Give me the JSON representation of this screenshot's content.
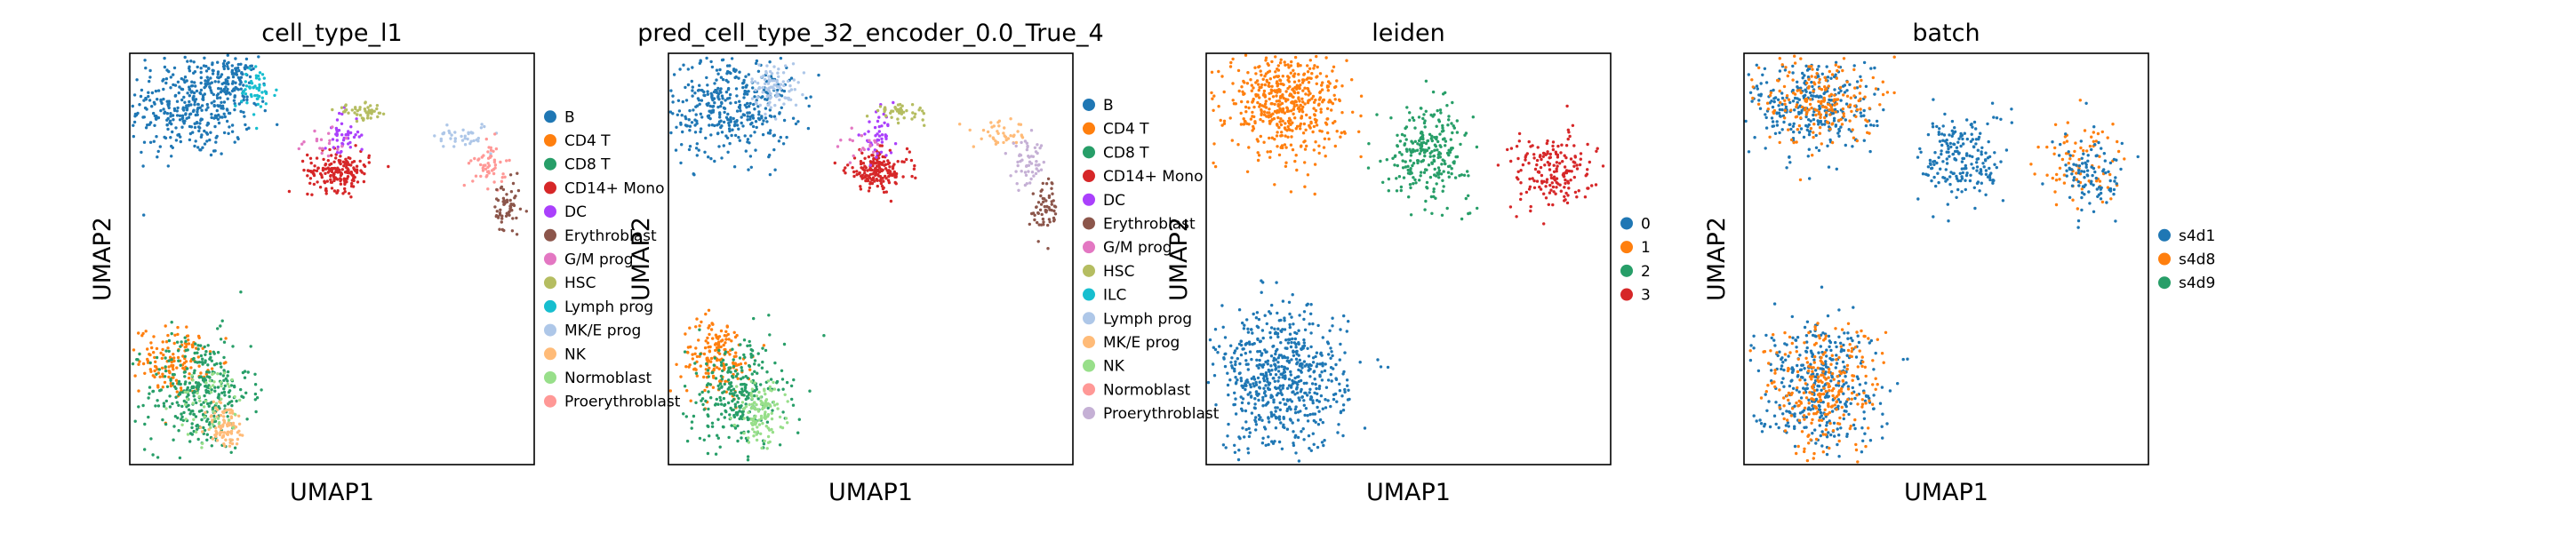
{
  "figure": {
    "panels": [
      {
        "title": "cell_type_l1",
        "xlabel": "UMAP1",
        "ylabel": "UMAP2",
        "legend": [
          {
            "label": "B",
            "color": "#1f77b4"
          },
          {
            "label": "CD4 T",
            "color": "#ff7f0e"
          },
          {
            "label": "CD8 T",
            "color": "#279e68"
          },
          {
            "label": "CD14+ Mono",
            "color": "#d62728"
          },
          {
            "label": "DC",
            "color": "#aa40fc"
          },
          {
            "label": "Erythroblast",
            "color": "#8c564b"
          },
          {
            "label": "G/M prog",
            "color": "#e377c2"
          },
          {
            "label": "HSC",
            "color": "#b5bd61"
          },
          {
            "label": "Lymph prog",
            "color": "#17becf"
          },
          {
            "label": "MK/E prog",
            "color": "#aec7e8"
          },
          {
            "label": "NK",
            "color": "#ffbb78"
          },
          {
            "label": "Normoblast",
            "color": "#98df8a"
          },
          {
            "label": "Proerythroblast",
            "color": "#ff9896"
          }
        ]
      },
      {
        "title": "pred_cell_type_32_encoder_0.0_True_4",
        "xlabel": "UMAP1",
        "ylabel": "UMAP2",
        "legend": [
          {
            "label": "B",
            "color": "#1f77b4"
          },
          {
            "label": "CD4 T",
            "color": "#ff7f0e"
          },
          {
            "label": "CD8 T",
            "color": "#279e68"
          },
          {
            "label": "CD14+ Mono",
            "color": "#d62728"
          },
          {
            "label": "DC",
            "color": "#aa40fc"
          },
          {
            "label": "Erythroblast",
            "color": "#8c564b"
          },
          {
            "label": "G/M prog",
            "color": "#e377c2"
          },
          {
            "label": "HSC",
            "color": "#b5bd61"
          },
          {
            "label": "ILC",
            "color": "#17becf"
          },
          {
            "label": "Lymph prog",
            "color": "#aec7e8"
          },
          {
            "label": "MK/E prog",
            "color": "#ffbb78"
          },
          {
            "label": "NK",
            "color": "#98df8a"
          },
          {
            "label": "Normoblast",
            "color": "#ff9896"
          },
          {
            "label": "Proerythroblast",
            "color": "#c5b0d5"
          }
        ]
      },
      {
        "title": "leiden",
        "xlabel": "UMAP1",
        "ylabel": "UMAP2",
        "legend": [
          {
            "label": "0",
            "color": "#1f77b4"
          },
          {
            "label": "1",
            "color": "#ff7f0e"
          },
          {
            "label": "2",
            "color": "#279e68"
          },
          {
            "label": "3",
            "color": "#d62728"
          }
        ]
      },
      {
        "title": "batch",
        "xlabel": "UMAP1",
        "ylabel": "UMAP2",
        "legend": [
          {
            "label": "s4d1",
            "color": "#1f77b4"
          },
          {
            "label": "s4d8",
            "color": "#ff7f0e"
          },
          {
            "label": "s4d9",
            "color": "#279e68"
          }
        ]
      }
    ]
  },
  "chart_data": [
    {
      "type": "scatter",
      "title": "cell_type_l1",
      "xlabel": "UMAP1",
      "ylabel": "UMAP2",
      "legend_placement": "right",
      "grid": false,
      "clusters": [
        {
          "name": "B",
          "x": -3.0,
          "y": 7.2,
          "sx": 0.9,
          "sy": 0.8,
          "n": 380
        },
        {
          "name": "B",
          "x": -1.8,
          "y": 8.0,
          "sx": 0.35,
          "sy": 0.35,
          "n": 90
        },
        {
          "name": "Lymph prog",
          "x": -1.1,
          "y": 7.6,
          "sx": 0.3,
          "sy": 0.4,
          "n": 50
        },
        {
          "name": "CD4 T",
          "x": -3.5,
          "y": -0.6,
          "sx": 0.5,
          "sy": 0.5,
          "n": 140
        },
        {
          "name": "CD8 T",
          "x": -2.8,
          "y": -1.6,
          "sx": 0.75,
          "sy": 0.9,
          "n": 340
        },
        {
          "name": "NK",
          "x": -2.0,
          "y": -2.6,
          "sx": 0.3,
          "sy": 0.35,
          "n": 90
        },
        {
          "name": "Normoblast",
          "x": -2.4,
          "y": -2.0,
          "sx": 0.5,
          "sy": 0.6,
          "n": 50
        },
        {
          "name": "CD14+ Mono",
          "x": 1.3,
          "y": 5.2,
          "sx": 0.45,
          "sy": 0.3,
          "n": 180
        },
        {
          "name": "DC",
          "x": 1.4,
          "y": 6.3,
          "sx": 0.25,
          "sy": 0.35,
          "n": 45
        },
        {
          "name": "HSC",
          "x": 2.0,
          "y": 7.0,
          "sx": 0.4,
          "sy": 0.12,
          "n": 50
        },
        {
          "name": "G/M prog",
          "x": 0.8,
          "y": 6.0,
          "sx": 0.4,
          "sy": 0.3,
          "n": 18
        },
        {
          "name": "MK/E prog",
          "x": 4.9,
          "y": 6.3,
          "sx": 0.4,
          "sy": 0.2,
          "n": 40
        },
        {
          "name": "Proerythroblast",
          "x": 5.7,
          "y": 5.4,
          "sx": 0.25,
          "sy": 0.35,
          "n": 55
        },
        {
          "name": "Erythroblast",
          "x": 6.2,
          "y": 4.0,
          "sx": 0.2,
          "sy": 0.45,
          "n": 60
        }
      ]
    },
    {
      "type": "scatter",
      "title": "pred_cell_type_32_encoder_0.0_True_4",
      "xlabel": "UMAP1",
      "ylabel": "UMAP2",
      "legend_placement": "right",
      "grid": false,
      "clusters": [
        {
          "name": "B",
          "x": -3.0,
          "y": 7.2,
          "sx": 0.9,
          "sy": 0.8,
          "n": 380
        },
        {
          "name": "Lymph prog",
          "x": -1.7,
          "y": 7.8,
          "sx": 0.35,
          "sy": 0.35,
          "n": 90
        },
        {
          "name": "CD4 T",
          "x": -3.4,
          "y": -0.5,
          "sx": 0.5,
          "sy": 0.6,
          "n": 170
        },
        {
          "name": "CD8 T",
          "x": -2.8,
          "y": -1.7,
          "sx": 0.7,
          "sy": 0.85,
          "n": 280
        },
        {
          "name": "NK",
          "x": -2.1,
          "y": -2.2,
          "sx": 0.35,
          "sy": 0.45,
          "n": 120
        },
        {
          "name": "CD14+ Mono",
          "x": 1.3,
          "y": 5.2,
          "sx": 0.45,
          "sy": 0.3,
          "n": 180
        },
        {
          "name": "DC",
          "x": 1.3,
          "y": 6.3,
          "sx": 0.25,
          "sy": 0.35,
          "n": 45
        },
        {
          "name": "HSC",
          "x": 2.0,
          "y": 7.0,
          "sx": 0.4,
          "sy": 0.12,
          "n": 45
        },
        {
          "name": "G/M prog",
          "x": 0.7,
          "y": 6.0,
          "sx": 0.4,
          "sy": 0.3,
          "n": 18
        },
        {
          "name": "MK/E prog",
          "x": 4.9,
          "y": 6.3,
          "sx": 0.4,
          "sy": 0.2,
          "n": 40
        },
        {
          "name": "Proerythroblast",
          "x": 5.7,
          "y": 5.4,
          "sx": 0.25,
          "sy": 0.35,
          "n": 55
        },
        {
          "name": "Erythroblast",
          "x": 6.2,
          "y": 4.0,
          "sx": 0.2,
          "sy": 0.45,
          "n": 60
        }
      ]
    },
    {
      "type": "scatter",
      "title": "leiden",
      "xlabel": "UMAP1",
      "ylabel": "UMAP2",
      "legend_placement": "right",
      "grid": false,
      "clusters": [
        {
          "name": "1",
          "x": -2.5,
          "y": 7.3,
          "sx": 0.85,
          "sy": 0.8,
          "n": 520
        },
        {
          "name": "0",
          "x": -2.6,
          "y": -1.2,
          "sx": 0.95,
          "sy": 1.1,
          "n": 640
        },
        {
          "name": "2",
          "x": 1.7,
          "y": 5.8,
          "sx": 0.6,
          "sy": 0.7,
          "n": 260
        },
        {
          "name": "3",
          "x": 5.3,
          "y": 5.2,
          "sx": 0.6,
          "sy": 0.6,
          "n": 180
        }
      ]
    },
    {
      "type": "scatter",
      "title": "batch",
      "xlabel": "UMAP1",
      "ylabel": "UMAP2",
      "legend_placement": "right",
      "grid": false,
      "clusters": [
        {
          "name": "s4d1",
          "x": -2.8,
          "y": 7.2,
          "sx": 0.9,
          "sy": 0.8,
          "n": 320
        },
        {
          "name": "s4d8",
          "x": -2.6,
          "y": 7.4,
          "sx": 0.8,
          "sy": 0.7,
          "n": 200
        },
        {
          "name": "s4d1",
          "x": -2.7,
          "y": -1.3,
          "sx": 0.9,
          "sy": 1.0,
          "n": 380
        },
        {
          "name": "s4d8",
          "x": -2.5,
          "y": -1.5,
          "sx": 0.85,
          "sy": 1.0,
          "n": 260
        },
        {
          "name": "s4d1",
          "x": 1.6,
          "y": 5.6,
          "sx": 0.6,
          "sy": 0.7,
          "n": 200
        },
        {
          "name": "s4d8",
          "x": 5.0,
          "y": 5.4,
          "sx": 0.7,
          "sy": 0.7,
          "n": 80
        },
        {
          "name": "s4d1",
          "x": 5.4,
          "y": 5.0,
          "sx": 0.5,
          "sy": 0.6,
          "n": 100
        }
      ]
    }
  ]
}
